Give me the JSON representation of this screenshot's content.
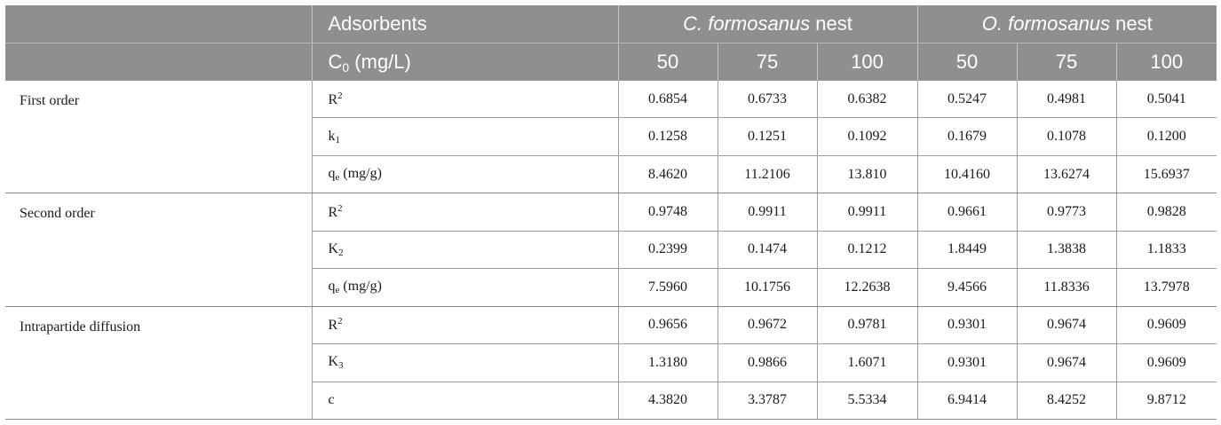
{
  "header": {
    "adsorbents_label": "Adsorbents",
    "c0_label": "C",
    "c0_sub": "0",
    "c0_unit": " (mg/L)",
    "group1_italic": "C. formosanus",
    "group1_suffix": " nest",
    "group2_italic": "O. formosanus",
    "group2_suffix": " nest",
    "concentrations": [
      "50",
      "75",
      "100",
      "50",
      "75",
      "100"
    ]
  },
  "models": [
    {
      "name": "First order",
      "rows": [
        {
          "base": "R",
          "sub": "",
          "sup": "2",
          "unit": "",
          "values": [
            "0.6854",
            "0.6733",
            "0.6382",
            "0.5247",
            "0.4981",
            "0.5041"
          ]
        },
        {
          "base": "k",
          "sub": "1",
          "sup": "",
          "unit": "",
          "values": [
            "0.1258",
            "0.1251",
            "0.1092",
            "0.1679",
            "0.1078",
            "0.1200"
          ]
        },
        {
          "base": "q",
          "sub": "e",
          "sup": "",
          "unit": " (mg/g)",
          "values": [
            "8.4620",
            "11.2106",
            "13.810",
            "10.4160",
            "13.6274",
            "15.6937"
          ]
        }
      ]
    },
    {
      "name": "Second order",
      "rows": [
        {
          "base": "R",
          "sub": "",
          "sup": "2",
          "unit": "",
          "values": [
            "0.9748",
            "0.9911",
            "0.9911",
            "0.9661",
            "0.9773",
            "0.9828"
          ]
        },
        {
          "base": "K",
          "sub": "2",
          "sup": "",
          "unit": "",
          "values": [
            "0.2399",
            "0.1474",
            "0.1212",
            "1.8449",
            "1.3838",
            "1.1833"
          ]
        },
        {
          "base": "q",
          "sub": "e",
          "sup": "",
          "unit": " (mg/g)",
          "values": [
            "7.5960",
            "10.1756",
            "12.2638",
            "9.4566",
            "11.8336",
            "13.7978"
          ]
        }
      ]
    },
    {
      "name": "Intrapartide diffusion",
      "rows": [
        {
          "base": "R",
          "sub": "",
          "sup": "2",
          "unit": "",
          "values": [
            "0.9656",
            "0.9672",
            "0.9781",
            "0.9301",
            "0.9674",
            "0.9609"
          ]
        },
        {
          "base": "K",
          "sub": "3",
          "sup": "",
          "unit": "",
          "values": [
            "1.3180",
            "0.9866",
            "1.6071",
            "0.9301",
            "0.9674",
            "0.9609"
          ]
        },
        {
          "base": "c",
          "sub": "",
          "sup": "",
          "unit": "",
          "values": [
            "4.3820",
            "3.3787",
            "5.5334",
            "6.9414",
            "8.4252",
            "9.8712"
          ]
        }
      ]
    }
  ]
}
